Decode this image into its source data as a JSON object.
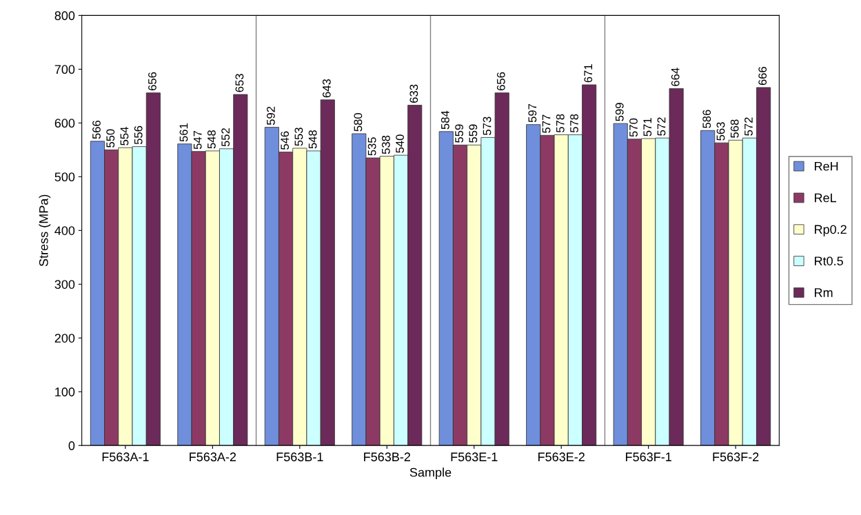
{
  "chart_data": {
    "type": "bar",
    "xlabel": "Sample",
    "ylabel": "Stress (MPa)",
    "categories": [
      "F563A-1",
      "F563A-2",
      "F563B-1",
      "F563B-2",
      "F563E-1",
      "F563E-2",
      "F563F-1",
      "F563F-2"
    ],
    "series": [
      {
        "name": "ReH",
        "color": "#6f8fdc",
        "values": [
          566,
          561,
          592,
          580,
          584,
          597,
          599,
          586
        ]
      },
      {
        "name": "ReL",
        "color": "#8c3a64",
        "values": [
          550,
          547,
          546,
          535,
          559,
          577,
          570,
          563
        ]
      },
      {
        "name": "Rp0.2",
        "color": "#ffffcc",
        "values": [
          554,
          548,
          553,
          538,
          559,
          578,
          571,
          568
        ]
      },
      {
        "name": "Rt0.5",
        "color": "#ccffff",
        "values": [
          556,
          552,
          548,
          540,
          573,
          578,
          572,
          572
        ]
      },
      {
        "name": "Rm",
        "color": "#6b2a5a",
        "values": [
          656,
          653,
          643,
          633,
          656,
          671,
          664,
          666
        ]
      }
    ],
    "ylim": [
      0,
      800
    ],
    "yticks": [
      0,
      100,
      200,
      300,
      400,
      500,
      600,
      700,
      800
    ],
    "data_labels": true,
    "grid": false,
    "legend": "right"
  }
}
